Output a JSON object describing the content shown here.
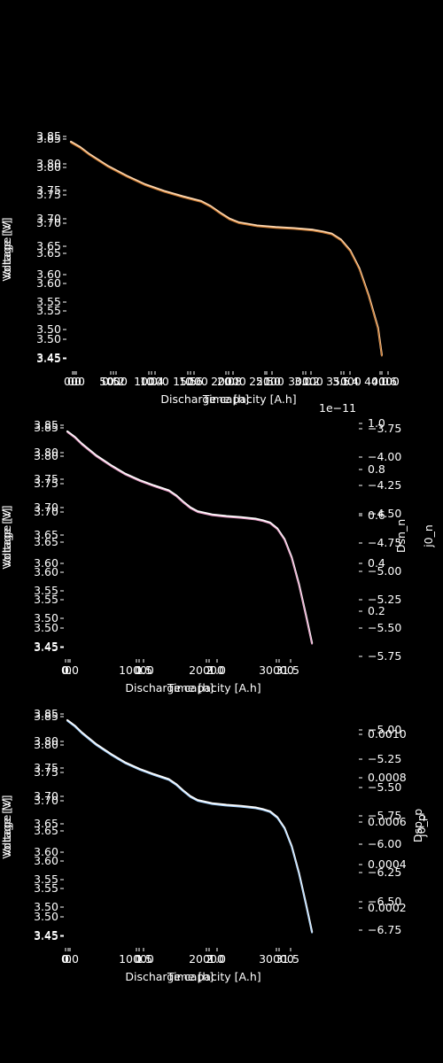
{
  "figure": {
    "background": "#000000",
    "foreground": "#ffffff"
  },
  "panels": [
    {
      "xlabels": [
        "Time [h]",
        "Discharge capacity [A.h]"
      ],
      "ylabels": [
        "Voltage [V]",
        "Voltage [V]"
      ],
      "left_ticks_a": [
        "3.85",
        "3.80",
        "3.75",
        "3.70",
        "3.65",
        "3.60",
        "3.55",
        "3.50",
        "3.45"
      ],
      "left_ticks_b": [
        "3.85",
        "3.80",
        "3.75",
        "3.70",
        "3.65",
        "3.60",
        "3.55",
        "3.50",
        "3.45"
      ],
      "bottom_ticks_a": [
        "0.0",
        "0.5",
        "1.0",
        "1.5",
        "2.0",
        "2.5",
        "3.0",
        "3.5",
        "4.0"
      ],
      "bottom_ticks_b": [
        "0",
        "5000",
        "10000",
        "15000",
        "20000",
        "25000",
        "30000",
        "35000",
        "40000"
      ],
      "bottom_ticks_c": [
        "0.0",
        "0.2",
        "0.4",
        "0.6",
        "0.8",
        "1.0",
        "1.2",
        "1.4",
        "1.6"
      ]
    },
    {
      "xlabels": [
        "Time [h]",
        "Discharge capacity [A.h]"
      ],
      "ylabels": [
        "Voltage [V]",
        "Voltage [V]"
      ],
      "right_labels": [
        "j0_n",
        "Dsn_n"
      ],
      "offset_text": "1e−11",
      "left_ticks_a": [
        "3.85",
        "3.80",
        "3.75",
        "3.70",
        "3.65",
        "3.60",
        "3.55",
        "3.50",
        "3.45"
      ],
      "left_ticks_b": [
        "3.85",
        "3.80",
        "3.75",
        "3.70",
        "3.65",
        "3.60",
        "3.55",
        "3.50",
        "3.45"
      ],
      "right_ticks_a": [
        "1.0",
        "0.8",
        "0.6",
        "0.4",
        "0.2"
      ],
      "right_ticks_b": [
        "−3.75",
        "−4.00",
        "−4.25",
        "−4.50",
        "−4.75",
        "−5.00",
        "−5.25",
        "−5.50",
        "−5.75"
      ],
      "bottom_ticks_a": [
        "0",
        "1",
        "2",
        "3"
      ],
      "bottom_ticks_b": [
        "0.0",
        "0.5",
        "1.0",
        "1.5"
      ],
      "bottom_ticks_c": [
        "0",
        "10000",
        "20000",
        "30000"
      ]
    },
    {
      "xlabels": [
        "Time [h]",
        "Discharge capacity [A.h]"
      ],
      "ylabels": [
        "Voltage [V]",
        "Voltage [V]"
      ],
      "right_labels": [
        "j0_p",
        "Dsp_p"
      ],
      "left_ticks_a": [
        "3.85",
        "3.80",
        "3.75",
        "3.70",
        "3.65",
        "3.60",
        "3.55",
        "3.50",
        "3.45"
      ],
      "left_ticks_b": [
        "3.85",
        "3.80",
        "3.75",
        "3.70",
        "3.65",
        "3.60",
        "3.55",
        "3.50",
        "3.45"
      ],
      "right_ticks_a": [
        "0.0010",
        "0.0008",
        "0.0006",
        "0.0004",
        "0.0002"
      ],
      "right_ticks_b": [
        "−5.00",
        "−5.25",
        "−5.50",
        "−5.75",
        "−6.00",
        "−6.25",
        "−6.50",
        "−6.75"
      ],
      "bottom_ticks_a": [
        "0",
        "1",
        "2",
        "3"
      ],
      "bottom_ticks_b": [
        "0.0",
        "0.5",
        "1.0",
        "1.5"
      ],
      "bottom_ticks_c": [
        "0",
        "10000",
        "20000",
        "30000"
      ]
    }
  ],
  "chart_data": [
    {
      "type": "line",
      "xlabel": "Time [h]",
      "ylabel": "Voltage [V]",
      "xlim": [
        0,
        1.68
      ],
      "ylim": [
        3.44,
        3.85
      ],
      "series": [
        {
          "color": "#ffd8b0",
          "x": [
            0,
            0.05,
            0.1,
            0.2,
            0.3,
            0.4,
            0.5,
            0.6,
            0.7,
            0.75,
            0.8,
            0.85,
            0.9,
            1.0,
            1.1,
            1.2,
            1.3,
            1.35,
            1.4,
            1.45,
            1.5,
            1.55,
            1.6,
            1.65,
            1.67
          ],
          "y": [
            3.845,
            3.835,
            3.822,
            3.8,
            3.782,
            3.766,
            3.754,
            3.744,
            3.735,
            3.726,
            3.714,
            3.703,
            3.696,
            3.69,
            3.687,
            3.685,
            3.682,
            3.679,
            3.675,
            3.664,
            3.644,
            3.61,
            3.56,
            3.5,
            3.45
          ]
        },
        {
          "color": "#c87830",
          "x": [
            0,
            0.05,
            0.1,
            0.2,
            0.3,
            0.4,
            0.5,
            0.6,
            0.7,
            0.75,
            0.8,
            0.85,
            0.9,
            1.0,
            1.1,
            1.2,
            1.3,
            1.35,
            1.4,
            1.45,
            1.5,
            1.55,
            1.6,
            1.65,
            1.67
          ],
          "y": [
            3.843,
            3.833,
            3.82,
            3.798,
            3.78,
            3.764,
            3.752,
            3.742,
            3.733,
            3.724,
            3.712,
            3.701,
            3.694,
            3.688,
            3.685,
            3.683,
            3.68,
            3.677,
            3.673,
            3.662,
            3.642,
            3.608,
            3.558,
            3.498,
            3.448
          ]
        }
      ]
    },
    {
      "type": "line",
      "xlabel": "Time [h]",
      "ylabel": "Voltage [V]",
      "xlim": [
        0,
        1.72
      ],
      "ylim": [
        3.44,
        3.85
      ],
      "series": [
        {
          "color": "#ffffff",
          "x": [
            0,
            0.05,
            0.1,
            0.2,
            0.3,
            0.4,
            0.5,
            0.6,
            0.7,
            0.75,
            0.8,
            0.85,
            0.9,
            1.0,
            1.1,
            1.2,
            1.3,
            1.35,
            1.4,
            1.45,
            1.5,
            1.55,
            1.6,
            1.65,
            1.69
          ],
          "y": [
            3.845,
            3.835,
            3.822,
            3.8,
            3.782,
            3.766,
            3.754,
            3.744,
            3.735,
            3.726,
            3.714,
            3.703,
            3.696,
            3.69,
            3.687,
            3.685,
            3.682,
            3.679,
            3.675,
            3.664,
            3.644,
            3.61,
            3.56,
            3.5,
            3.45
          ]
        },
        {
          "color": "#e8a0c8",
          "x": [
            0,
            0.05,
            0.1,
            0.2,
            0.3,
            0.4,
            0.5,
            0.6,
            0.7,
            0.75,
            0.8,
            0.85,
            0.9,
            1.0,
            1.1,
            1.2,
            1.3,
            1.35,
            1.4,
            1.45,
            1.5,
            1.55,
            1.6,
            1.65,
            1.69
          ],
          "y": [
            3.843,
            3.833,
            3.82,
            3.798,
            3.78,
            3.764,
            3.752,
            3.742,
            3.733,
            3.724,
            3.712,
            3.701,
            3.694,
            3.688,
            3.685,
            3.683,
            3.68,
            3.677,
            3.673,
            3.662,
            3.642,
            3.608,
            3.558,
            3.498,
            3.448
          ]
        }
      ]
    },
    {
      "type": "line",
      "xlabel": "Time [h]",
      "ylabel": "Voltage [V]",
      "xlim": [
        0,
        1.72
      ],
      "ylim": [
        3.44,
        3.85
      ],
      "series": [
        {
          "color": "#ffffff",
          "x": [
            0,
            0.05,
            0.1,
            0.2,
            0.3,
            0.4,
            0.5,
            0.6,
            0.7,
            0.75,
            0.8,
            0.85,
            0.9,
            1.0,
            1.1,
            1.2,
            1.3,
            1.35,
            1.4,
            1.45,
            1.5,
            1.55,
            1.6,
            1.65,
            1.69
          ],
          "y": [
            3.845,
            3.835,
            3.822,
            3.8,
            3.782,
            3.766,
            3.754,
            3.744,
            3.735,
            3.726,
            3.714,
            3.703,
            3.696,
            3.69,
            3.687,
            3.685,
            3.682,
            3.679,
            3.675,
            3.664,
            3.644,
            3.61,
            3.56,
            3.5,
            3.45
          ]
        },
        {
          "color": "#b0d8ff",
          "x": [
            0,
            0.05,
            0.1,
            0.2,
            0.3,
            0.4,
            0.5,
            0.6,
            0.7,
            0.75,
            0.8,
            0.85,
            0.9,
            1.0,
            1.1,
            1.2,
            1.3,
            1.35,
            1.4,
            1.45,
            1.5,
            1.55,
            1.6,
            1.65,
            1.69
          ],
          "y": [
            3.843,
            3.833,
            3.82,
            3.798,
            3.78,
            3.764,
            3.752,
            3.742,
            3.733,
            3.724,
            3.712,
            3.701,
            3.694,
            3.688,
            3.685,
            3.683,
            3.68,
            3.677,
            3.673,
            3.662,
            3.642,
            3.608,
            3.558,
            3.498,
            3.448
          ]
        }
      ]
    }
  ]
}
